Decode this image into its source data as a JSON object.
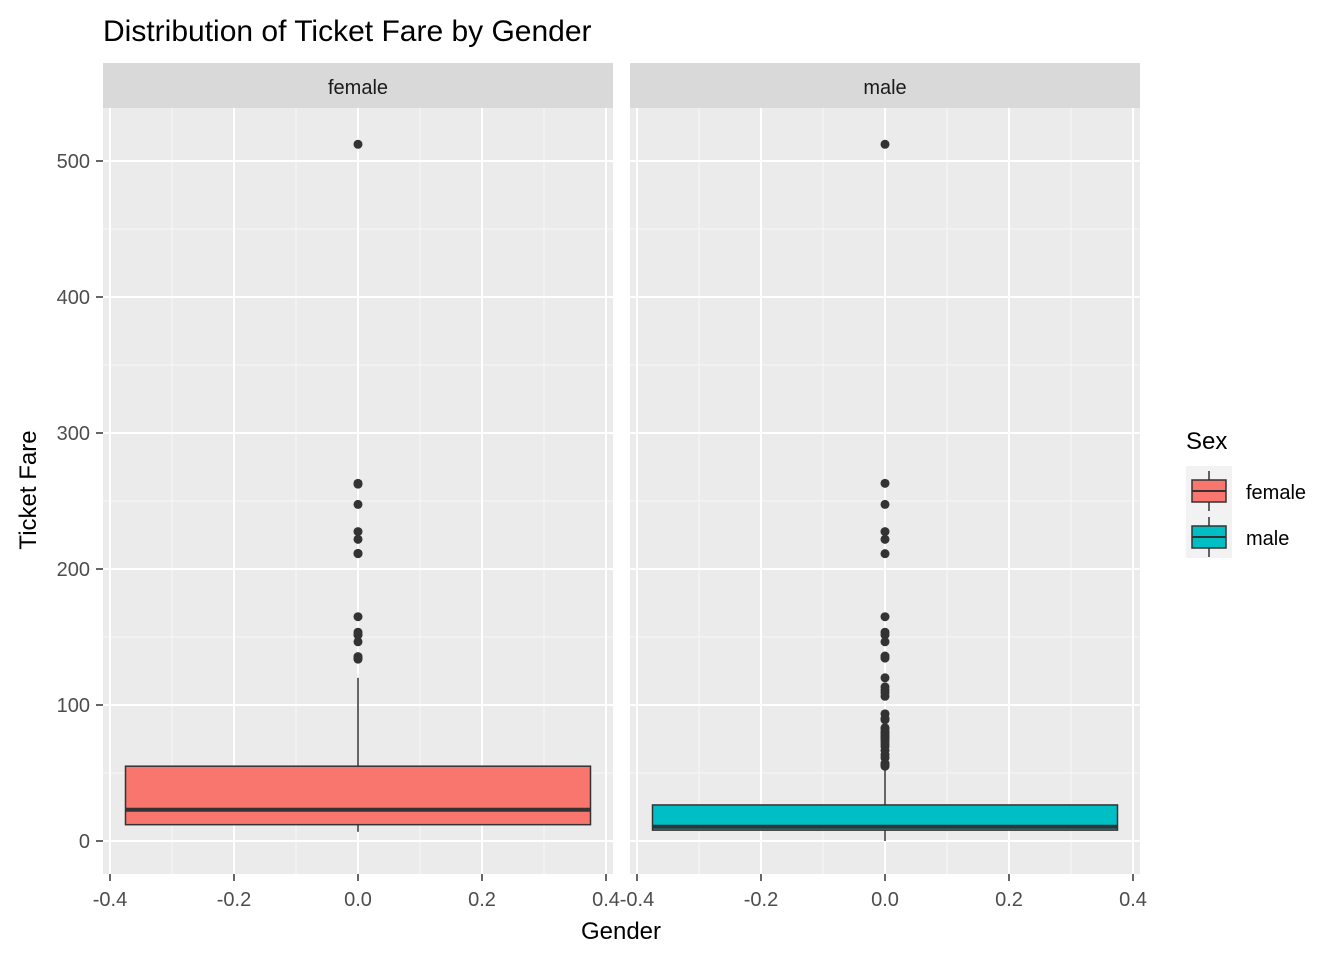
{
  "chart_data": {
    "type": "boxplot",
    "title": "Distribution of Ticket Fare by Gender",
    "xlabel": "Gender",
    "ylabel": "Ticket Fare",
    "facets": [
      "female",
      "male"
    ],
    "x_ticks": [
      "-0.4",
      "-0.2",
      "0.0",
      "0.2",
      "0.4"
    ],
    "x_tick_values": [
      -0.4,
      -0.2,
      0.0,
      0.2,
      0.4
    ],
    "xlim": [
      -0.4,
      0.4
    ],
    "y_ticks": [
      0,
      100,
      200,
      300,
      400,
      500
    ],
    "ylim": [
      -25,
      538
    ],
    "legend": {
      "title": "Sex",
      "placement": "right",
      "entries": [
        {
          "label": "female",
          "color": "#F8766D"
        },
        {
          "label": "male",
          "color": "#00BFC4"
        }
      ]
    },
    "series": [
      {
        "name": "female",
        "color": "#F8766D",
        "box_half_width": 0.375,
        "min": 6.75,
        "q1": 12,
        "median": 23,
        "q3": 55,
        "whisker_high": 120,
        "outliers": [
          512.3,
          263,
          262.4,
          247.5,
          227.5,
          221.8,
          211.3,
          211.5,
          164.9,
          153.5,
          151.6,
          151.5,
          146.5,
          135.6,
          134.5,
          133.7
        ]
      },
      {
        "name": "male",
        "color": "#00BFC4",
        "box_half_width": 0.375,
        "min": 0,
        "q1": 8,
        "median": 10.5,
        "q3": 26.5,
        "whisker_high": 52,
        "outliers": [
          512.3,
          263,
          247.5,
          227.5,
          221.8,
          211.3,
          164.9,
          153.5,
          151.6,
          146.5,
          136,
          134.5,
          120,
          113.3,
          110.9,
          108.9,
          106.4,
          93.5,
          90,
          89.1,
          83.2,
          82.2,
          80,
          79.6,
          78.9,
          77.3,
          76.7,
          75.3,
          73.5,
          71.3,
          69.5,
          66.6,
          63.4,
          61.2,
          57,
          56.5,
          55.9,
          55
        ]
      }
    ],
    "grid": true
  }
}
